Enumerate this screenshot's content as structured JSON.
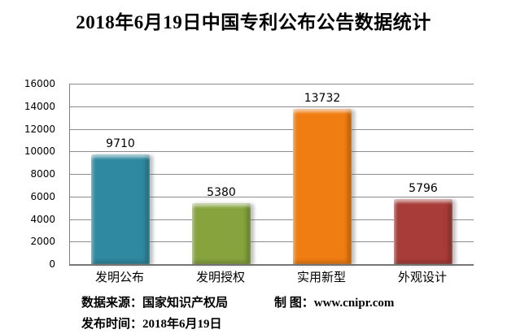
{
  "title": "2018年6月19日中国专利公布公告数据统计",
  "chart_data": {
    "type": "bar",
    "title": "2018年6月19日中国专利公布公告数据统计",
    "categories": [
      "发明公布",
      "发明授权",
      "实用新型",
      "外观设计"
    ],
    "values": [
      9710,
      5380,
      13732,
      5796
    ],
    "bar_colors": [
      "#2F89A0",
      "#86A33E",
      "#F07D11",
      "#A73C38"
    ],
    "xlabel": "",
    "ylabel": "",
    "ylim": [
      0,
      16000
    ],
    "yticks": [
      0,
      2000,
      4000,
      6000,
      8000,
      10000,
      12000,
      14000,
      16000
    ],
    "grid": true,
    "legend": false
  },
  "footer": {
    "source_label": "数据来源：国家知识产权局",
    "credit_label": "制 图：www.cnipr.com",
    "date_label": "发布时间：2018年6月19日"
  },
  "colors": {
    "background": "#FFFFFF",
    "gridline": "#8C8C8C",
    "axis": "#7F7F7F",
    "text": "#000000"
  }
}
